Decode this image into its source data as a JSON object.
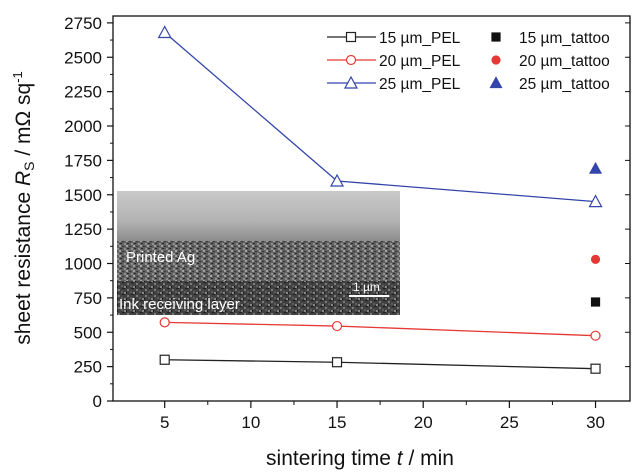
{
  "chart_data": {
    "type": "scatter",
    "x_axis": {
      "label_prefix": "sintering time ",
      "label_var": "t",
      "label_suffix": " / min",
      "range": [
        2,
        32
      ],
      "ticks": [
        5,
        10,
        15,
        20,
        25,
        30
      ],
      "tick_labels": [
        "5",
        "10",
        "15",
        "20",
        "25",
        "30"
      ]
    },
    "y_axis": {
      "label_prefix": "sheet resistance ",
      "label_var": "R",
      "label_sub": "S",
      "label_unit": " / mΩ sq",
      "label_sup": "-1",
      "range": [
        0,
        2800
      ],
      "ticks": [
        0,
        250,
        500,
        750,
        1000,
        1250,
        1500,
        1750,
        2000,
        2250,
        2500,
        2750
      ],
      "tick_labels": [
        "0",
        "250",
        "500",
        "750",
        "1000",
        "1250",
        "1500",
        "1750",
        "2000",
        "2250",
        "2500",
        "2750"
      ]
    },
    "grid": false,
    "legend_position": "top-right",
    "series": [
      {
        "name": "15 µm_PEL",
        "kind": "line",
        "marker": "open-square",
        "color": "#222222",
        "x": [
          5,
          15,
          30
        ],
        "y": [
          300,
          282,
          235
        ]
      },
      {
        "name": "20 µm_PEL",
        "kind": "line",
        "marker": "open-circle",
        "color": "#e53935",
        "x": [
          5,
          15,
          30
        ],
        "y": [
          572,
          545,
          475
        ]
      },
      {
        "name": "25 µm_PEL",
        "kind": "line",
        "marker": "open-triangle",
        "color": "#3344aa",
        "x": [
          5,
          15,
          30
        ],
        "y": [
          2680,
          1600,
          1450
        ]
      },
      {
        "name": "15 µm_tattoo",
        "kind": "point",
        "marker": "filled-square",
        "color": "#111111",
        "x": [
          30
        ],
        "y": [
          720
        ]
      },
      {
        "name": "20 µm_tattoo",
        "kind": "point",
        "marker": "filled-circle",
        "color": "#e53935",
        "x": [
          30
        ],
        "y": [
          1030
        ]
      },
      {
        "name": "25 µm_tattoo",
        "kind": "point",
        "marker": "filled-triangle",
        "color": "#3344aa",
        "x": [
          30
        ],
        "y": [
          1690
        ]
      }
    ],
    "inset": {
      "label_top": "Printed Ag",
      "label_bottom": "Ink receiving layer",
      "scale_bar": "1 µm"
    }
  }
}
